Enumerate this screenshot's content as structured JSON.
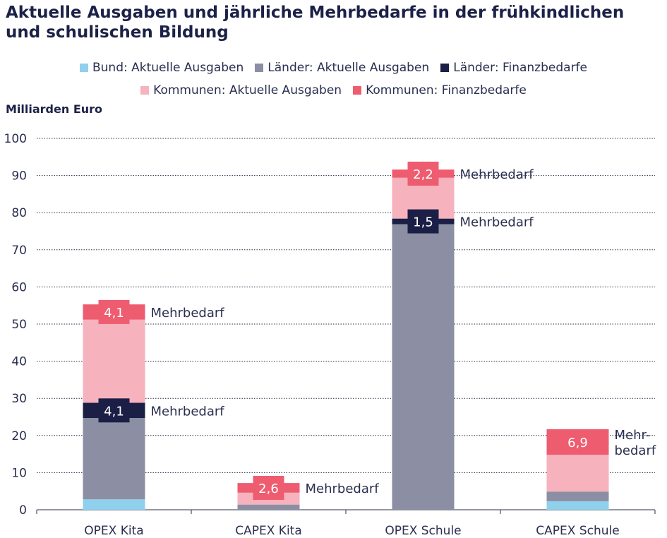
{
  "title": "Aktuelle Ausgaben und jährliche Mehrbedarfe in der frühkindlichen und schulischen Bildung",
  "unit_label": "Milliarden Euro",
  "colors": {
    "bund_aktuell": "#8fd0ec",
    "laender_aktuell": "#8c8fa3",
    "laender_bedarf": "#1b1f46",
    "kommunen_aktuell": "#f6b2bd",
    "kommunen_bedarf": "#ee5c70"
  },
  "legend": [
    [
      {
        "label": "Bund: Aktuelle Ausgaben",
        "key": "bund_aktuell"
      },
      {
        "label": "Länder: Aktuelle Ausgaben",
        "key": "laender_aktuell"
      },
      {
        "label": "Länder: Finanzbedarfe",
        "key": "laender_bedarf"
      }
    ],
    [
      {
        "label": "Kommunen: Aktuelle Ausgaben",
        "key": "kommunen_aktuell"
      },
      {
        "label": "Kommunen: Finanzbedarfe",
        "key": "kommunen_bedarf"
      }
    ]
  ],
  "chart_data": {
    "type": "bar",
    "stacked": true,
    "title": "Aktuelle Ausgaben und jährliche Mehrbedarfe in der frühkindlichen und schulischen Bildung",
    "ylabel": "Milliarden Euro",
    "ylim": [
      0,
      100
    ],
    "yticks": [
      0,
      10,
      20,
      30,
      40,
      50,
      60,
      70,
      80,
      90,
      100
    ],
    "grid": true,
    "legend_position": "top",
    "categories": [
      "OPEX Kita",
      "CAPEX Kita",
      "OPEX Schule",
      "CAPEX Schule"
    ],
    "series": [
      {
        "name": "Bund: Aktuelle Ausgaben",
        "key": "bund_aktuell",
        "values": [
          2.8,
          0,
          0,
          2.3
        ]
      },
      {
        "name": "Länder: Aktuelle Ausgaben",
        "key": "laender_aktuell",
        "values": [
          21.9,
          1.4,
          76.9,
          2.6
        ]
      },
      {
        "name": "Länder: Finanzbedarfe",
        "key": "laender_bedarf",
        "values": [
          4.1,
          0,
          1.5,
          0
        ]
      },
      {
        "name": "Kommunen: Aktuelle Ausgaben",
        "key": "kommunen_aktuell",
        "values": [
          22.4,
          3.2,
          11.0,
          9.9
        ]
      },
      {
        "name": "Kommunen: Finanzbedarfe",
        "key": "kommunen_bedarf",
        "values": [
          4.1,
          2.6,
          2.2,
          6.9
        ]
      }
    ],
    "annotations": [
      {
        "category": 0,
        "series": "laender_bedarf",
        "value_label": "4,1",
        "text": [
          "Mehrbedarf"
        ]
      },
      {
        "category": 0,
        "series": "kommunen_bedarf",
        "value_label": "4,1",
        "text": [
          "Mehrbedarf"
        ]
      },
      {
        "category": 1,
        "series": "kommunen_bedarf",
        "value_label": "2,6",
        "text": [
          "Mehrbedarf"
        ]
      },
      {
        "category": 2,
        "series": "laender_bedarf",
        "value_label": "1,5",
        "text": [
          "Mehrbedarf"
        ]
      },
      {
        "category": 2,
        "series": "kommunen_bedarf",
        "value_label": "2,2",
        "text": [
          "Mehrbedarf"
        ]
      },
      {
        "category": 3,
        "series": "kommunen_bedarf",
        "value_label": "6,9",
        "text": [
          "Mehr-",
          "bedarf"
        ]
      }
    ]
  }
}
